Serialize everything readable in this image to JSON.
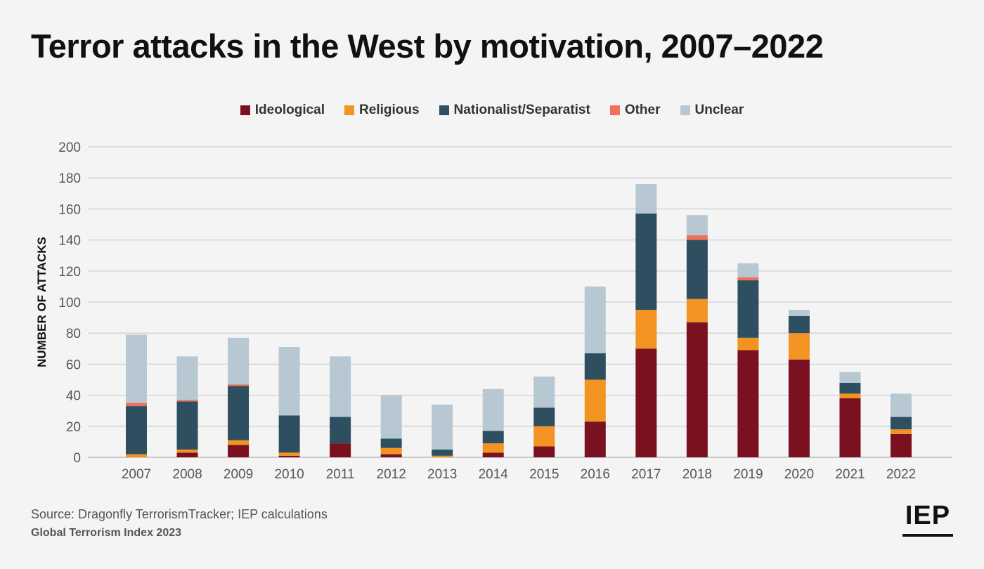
{
  "chart_data": {
    "type": "bar",
    "stacked": true,
    "title": "Terror attacks in the West by motivation, 2007–2022",
    "xlabel": "",
    "ylabel": "NUMBER OF ATTACKS",
    "ylim": [
      0,
      200
    ],
    "yticks": [
      0,
      20,
      40,
      60,
      80,
      100,
      120,
      140,
      160,
      180,
      200
    ],
    "grid": true,
    "legend": "top-center",
    "categories": [
      "2007",
      "2008",
      "2009",
      "2010",
      "2011",
      "2012",
      "2013",
      "2014",
      "2015",
      "2016",
      "2017",
      "2018",
      "2019",
      "2020",
      "2021",
      "2022"
    ],
    "series": [
      {
        "name": "Ideological",
        "color": "#7a1120",
        "values": [
          0,
          3,
          8,
          1,
          9,
          2,
          0,
          3,
          7,
          23,
          70,
          87,
          69,
          63,
          38,
          15
        ]
      },
      {
        "name": "Religious",
        "color": "#f39322",
        "values": [
          2,
          2,
          3,
          2,
          0,
          4,
          1,
          6,
          13,
          27,
          25,
          15,
          8,
          17,
          3,
          3
        ]
      },
      {
        "name": "Nationalist/Separatist",
        "color": "#2e4f5f",
        "values": [
          31,
          31,
          35,
          24,
          17,
          6,
          4,
          8,
          12,
          17,
          62,
          38,
          37,
          11,
          7,
          8
        ]
      },
      {
        "name": "Other",
        "color": "#f07059",
        "values": [
          2,
          1,
          1,
          0,
          0,
          0,
          0,
          0,
          0,
          0,
          0,
          3,
          2,
          0,
          0,
          0
        ]
      },
      {
        "name": "Unclear",
        "color": "#b7c8d2",
        "values": [
          44,
          28,
          30,
          44,
          39,
          28,
          29,
          27,
          20,
          43,
          19,
          13,
          9,
          4,
          7,
          15
        ]
      }
    ]
  },
  "footer": {
    "source": "Source: Dragonfly TerrorismTracker; IEP calculations",
    "publication": "Global Terrorism Index 2023",
    "logo": "IEP"
  }
}
